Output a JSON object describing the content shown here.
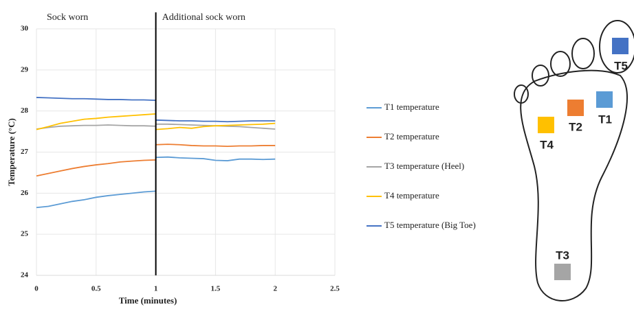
{
  "chart_data": {
    "type": "line",
    "xlabel": "Time (minutes)",
    "ylabel": "Temperature (°C)",
    "annotations": [
      "Sock worn",
      "Additional sock worn"
    ],
    "divider_x": 1,
    "xlim": [
      0,
      2.5
    ],
    "xticks": [
      0,
      0.5,
      1,
      1.5,
      2,
      2.5
    ],
    "ylim": [
      24,
      30
    ],
    "yticks": [
      24,
      25,
      26,
      27,
      28,
      29,
      30
    ],
    "grid": true,
    "legend": "right",
    "x": [
      0,
      0.1,
      0.2,
      0.3,
      0.4,
      0.5,
      0.6,
      0.7,
      0.8,
      0.9,
      1,
      1,
      1.1,
      1.2,
      1.3,
      1.4,
      1.5,
      1.6,
      1.7,
      1.8,
      1.9,
      2
    ],
    "series": [
      {
        "name": "T1 temperature",
        "color": "#5b9bd5",
        "values": [
          25.65,
          25.68,
          25.74,
          25.8,
          25.84,
          25.9,
          25.94,
          25.97,
          26.0,
          26.03,
          26.05,
          26.87,
          26.88,
          26.86,
          26.85,
          26.84,
          26.8,
          26.79,
          26.83,
          26.83,
          26.82,
          26.83
        ]
      },
      {
        "name": "T2 temperature",
        "color": "#ed7d31",
        "values": [
          26.42,
          26.48,
          26.54,
          26.6,
          26.65,
          26.69,
          26.72,
          26.76,
          26.78,
          26.8,
          26.81,
          27.18,
          27.19,
          27.18,
          27.16,
          27.15,
          27.15,
          27.14,
          27.15,
          27.15,
          27.16,
          27.16
        ]
      },
      {
        "name": "T3 temperature (Heel)",
        "color": "#a5a5a5",
        "values": [
          27.56,
          27.6,
          27.63,
          27.64,
          27.65,
          27.65,
          27.66,
          27.65,
          27.64,
          27.64,
          27.63,
          27.68,
          27.68,
          27.67,
          27.66,
          27.65,
          27.64,
          27.63,
          27.62,
          27.6,
          27.58,
          27.56
        ]
      },
      {
        "name": "T4 temperature",
        "color": "#ffc000",
        "values": [
          27.55,
          27.62,
          27.7,
          27.75,
          27.8,
          27.82,
          27.85,
          27.87,
          27.89,
          27.91,
          27.93,
          27.55,
          27.57,
          27.6,
          27.58,
          27.62,
          27.64,
          27.65,
          27.66,
          27.67,
          27.68,
          27.7
        ]
      },
      {
        "name": "T5 temperature (Big Toe)",
        "color": "#4472c4",
        "values": [
          28.33,
          28.32,
          28.31,
          28.3,
          28.3,
          28.29,
          28.28,
          28.28,
          28.27,
          28.27,
          28.26,
          27.78,
          27.77,
          27.76,
          27.76,
          27.75,
          27.75,
          27.74,
          27.75,
          27.76,
          27.76,
          27.76
        ]
      }
    ]
  },
  "foot_diagram": {
    "labels": [
      "T1",
      "T2",
      "T3",
      "T4",
      "T5"
    ]
  }
}
